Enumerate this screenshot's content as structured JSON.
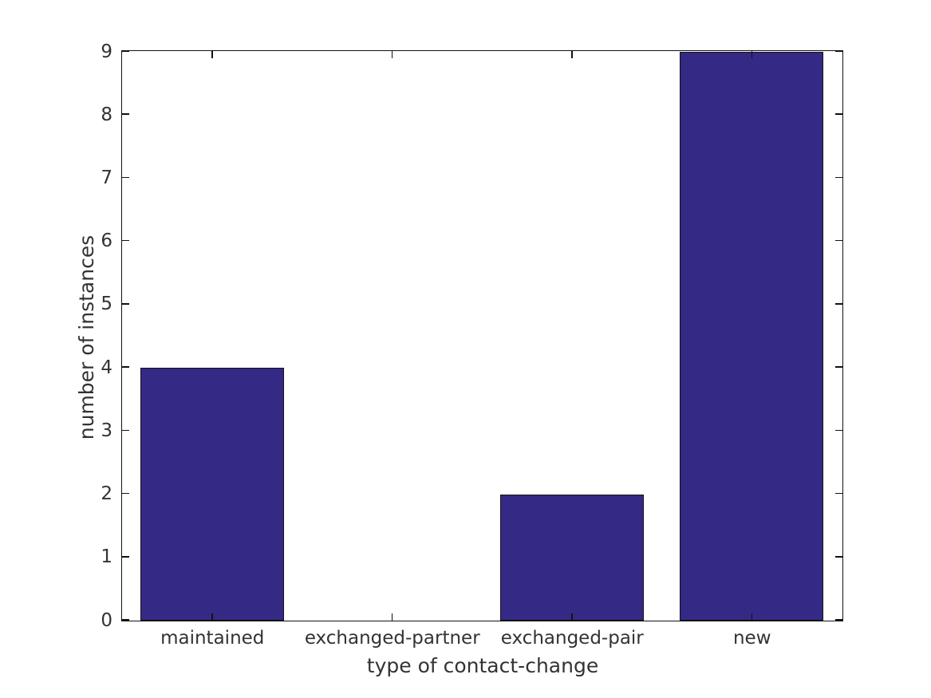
{
  "chart_data": {
    "type": "bar",
    "categories": [
      "maintained",
      "exchanged-partner",
      "exchanged-pair",
      "new"
    ],
    "values": [
      4,
      0,
      2,
      9
    ],
    "title": "",
    "xlabel": "type of contact-change",
    "ylabel": "number of instances",
    "ylim": [
      0,
      9
    ],
    "yticks": [
      0,
      1,
      2,
      3,
      4,
      5,
      6,
      7,
      8,
      9
    ],
    "grid": false,
    "legend": null,
    "bar_width_fraction": 0.8,
    "tick_direction": "in",
    "colors": {
      "bar_fill": "#342a86",
      "bar_edge": "#111111",
      "axis": "#111111",
      "text": "#333333",
      "background": "#ffffff"
    }
  }
}
